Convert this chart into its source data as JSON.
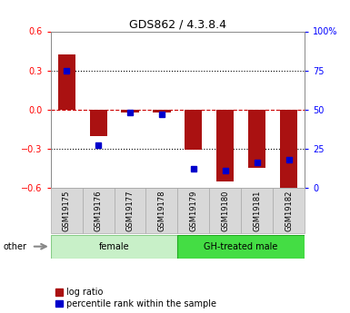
{
  "title": "GDS862 / 4.3.8.4",
  "samples": [
    "GSM19175",
    "GSM19176",
    "GSM19177",
    "GSM19178",
    "GSM19179",
    "GSM19180",
    "GSM19181",
    "GSM19182"
  ],
  "log_ratio": [
    0.42,
    -0.2,
    -0.02,
    -0.02,
    -0.31,
    -0.55,
    -0.45,
    -0.62
  ],
  "percentile_rank_pct": [
    75,
    27,
    48,
    47,
    12,
    11,
    16,
    18
  ],
  "groups": [
    {
      "label": "female",
      "start": 0,
      "end": 4,
      "facecolor": "#c8f0c8",
      "edgecolor": "#88cc88"
    },
    {
      "label": "GH-treated male",
      "start": 4,
      "end": 8,
      "facecolor": "#44dd44",
      "edgecolor": "#22aa22"
    }
  ],
  "ylim": [
    -0.6,
    0.6
  ],
  "yticks": [
    -0.6,
    -0.3,
    0.0,
    0.3,
    0.6
  ],
  "right_yticks": [
    0,
    25,
    50,
    75,
    100
  ],
  "right_yticklabels": [
    "0",
    "25",
    "50",
    "75",
    "100%"
  ],
  "bar_color": "#aa1111",
  "dot_color": "#0000cc",
  "zero_line_color": "#cc0000",
  "grid_color": "#000000",
  "bar_width": 0.55,
  "other_label": "other",
  "title_fontsize": 9,
  "tick_fontsize": 7,
  "label_fontsize": 6,
  "group_fontsize": 7,
  "legend_fontsize": 7
}
